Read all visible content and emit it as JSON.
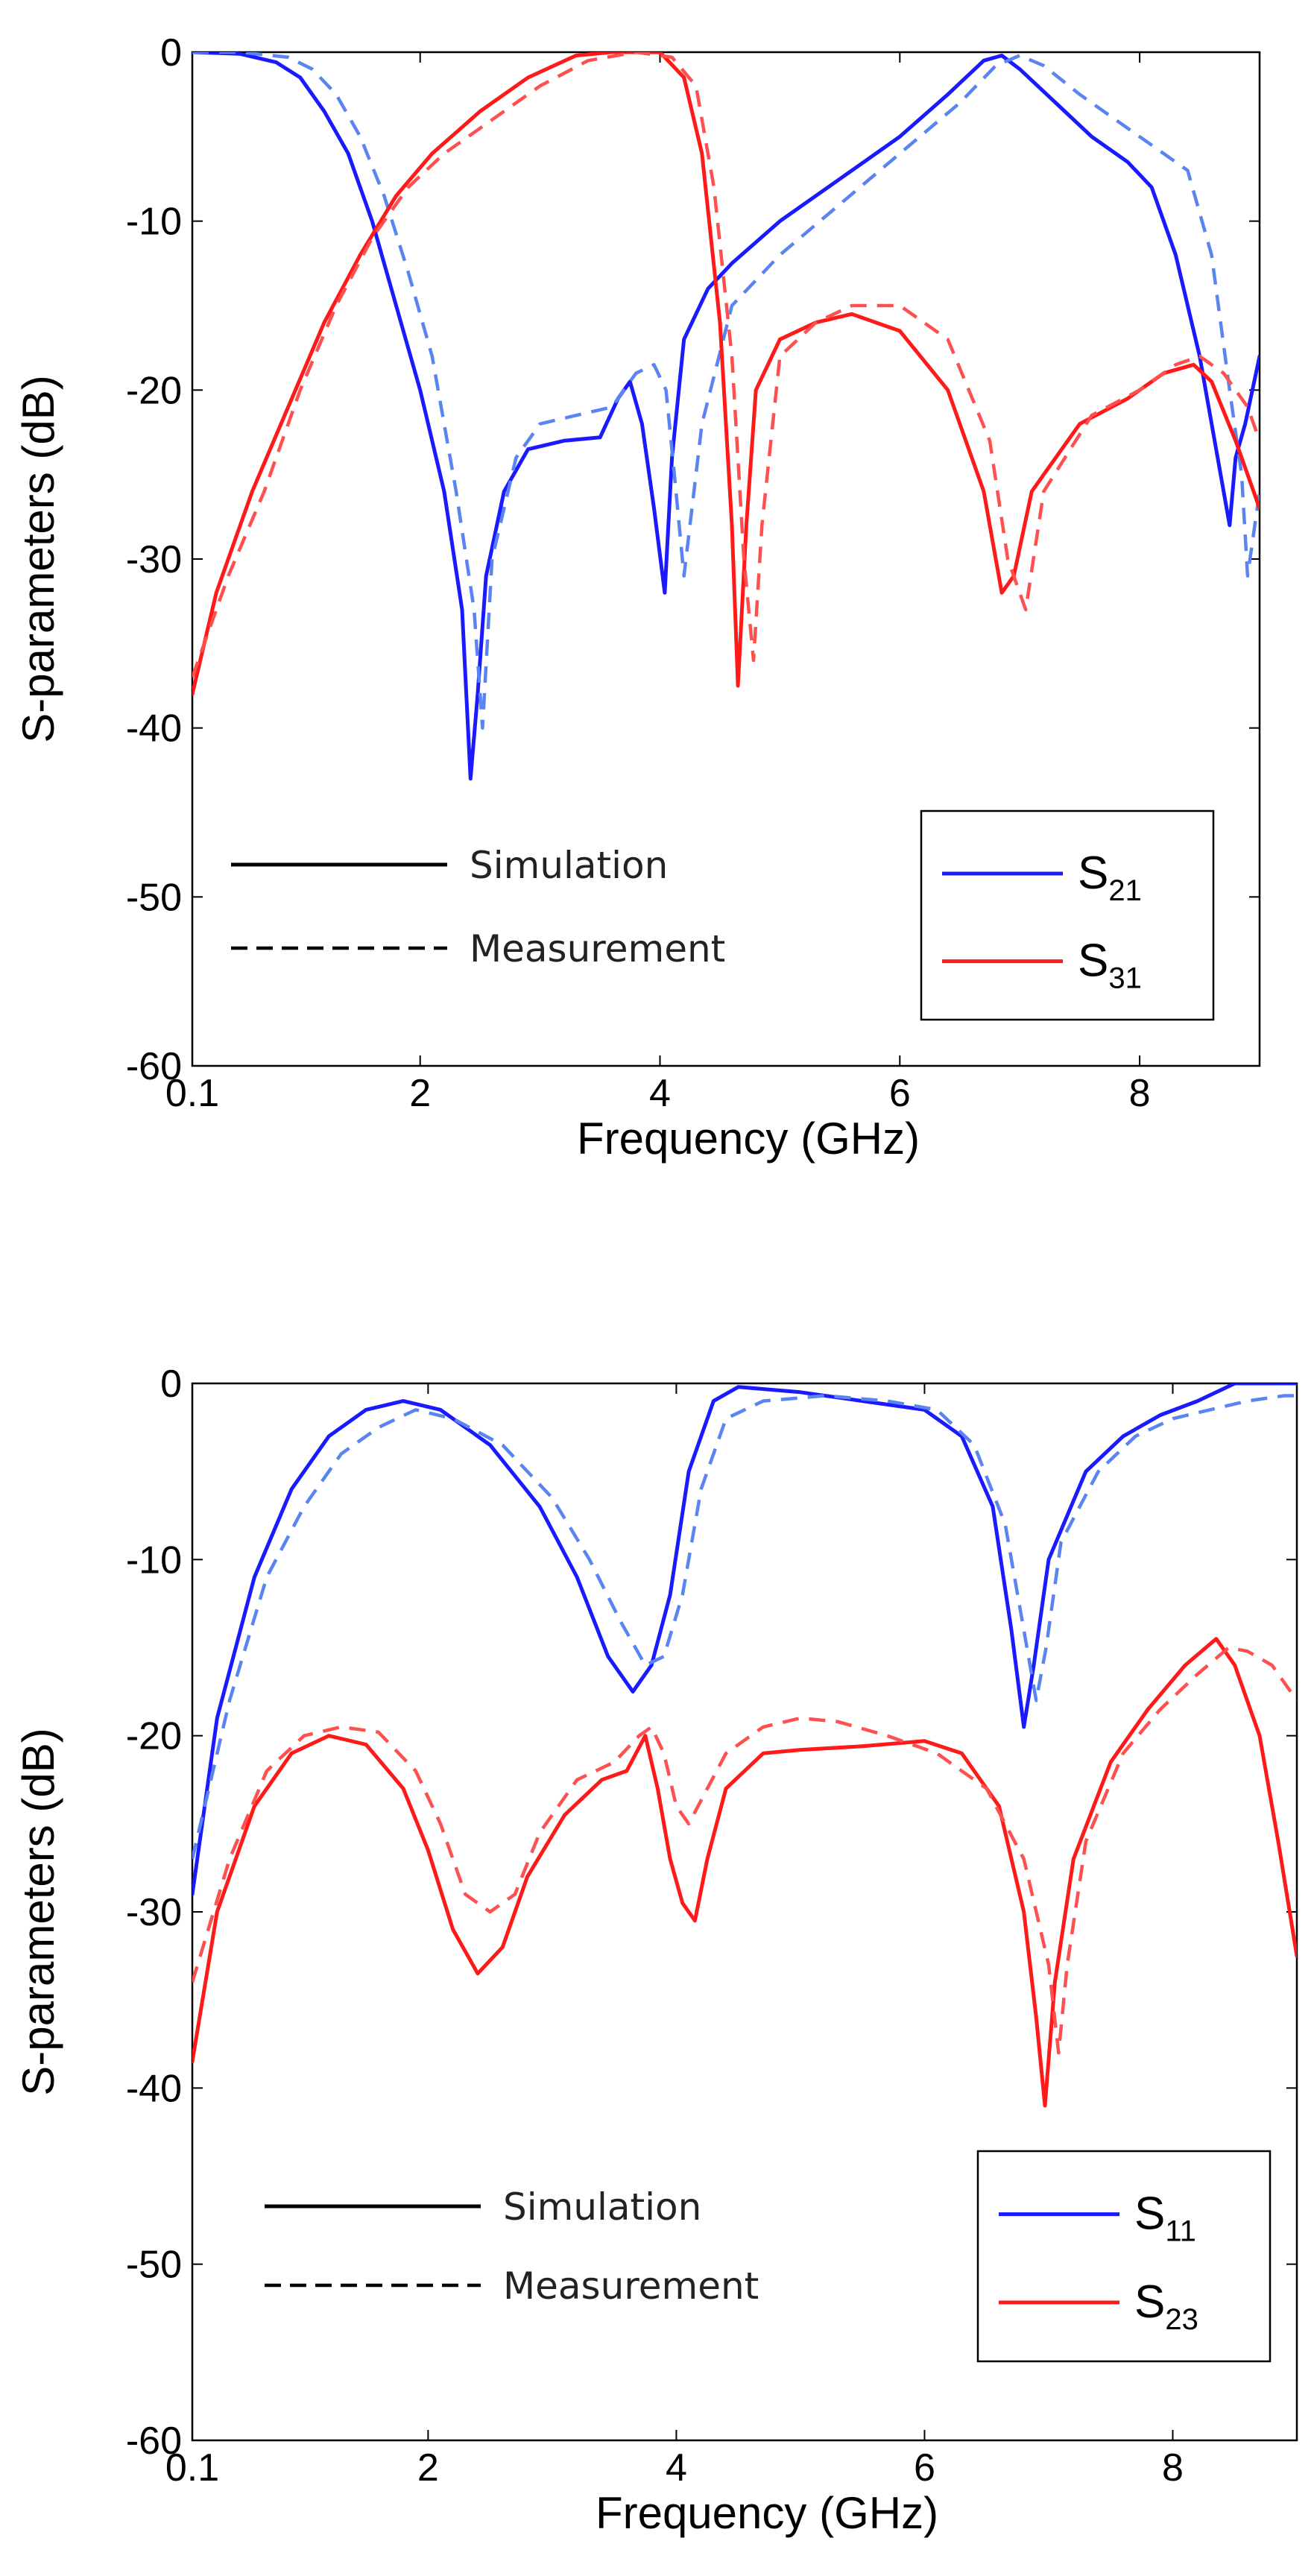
{
  "chart_data": [
    {
      "type": "line",
      "xlabel": "Frequency (GHz)",
      "ylabel": "S-parameters (dB)",
      "xlim": [
        0.1,
        9
      ],
      "ylim": [
        -60,
        0
      ],
      "xticks": [
        0.1,
        2,
        4,
        6,
        8
      ],
      "xtick_labels": [
        "0.1",
        "2",
        "4",
        "6",
        "8"
      ],
      "yticks": [
        0,
        -10,
        -20,
        -30,
        -40,
        -50,
        -60
      ],
      "ytick_labels": [
        "0",
        "-10",
        "-20",
        "-30",
        "-40",
        "-50",
        "-60"
      ],
      "style_legend": {
        "solid": "Simulation",
        "dashed": "Measurement",
        "placement": "lower-left"
      },
      "legend": {
        "placement": "lower-right",
        "entries": [
          {
            "base": "S",
            "sub": "21",
            "color": "#1a1aff"
          },
          {
            "base": "S",
            "sub": "31",
            "color": "#ff1a1a"
          }
        ]
      },
      "series": [
        {
          "name": "S21 Simulation",
          "color": "#1a1aff",
          "style": "solid",
          "x": [
            0.1,
            0.5,
            0.8,
            1.0,
            1.2,
            1.4,
            1.6,
            1.8,
            2.0,
            2.2,
            2.35,
            2.42,
            2.48,
            2.55,
            2.7,
            2.9,
            3.2,
            3.5,
            3.65,
            3.75,
            3.85,
            3.95,
            4.04,
            4.1,
            4.2,
            4.4,
            4.6,
            5.0,
            5.5,
            6.0,
            6.4,
            6.7,
            6.85,
            7.0,
            7.3,
            7.6,
            7.9,
            8.1,
            8.3,
            8.5,
            8.65,
            8.75,
            8.8,
            8.88,
            9.0
          ],
          "y": [
            0,
            -0.1,
            -0.6,
            -1.5,
            -3.5,
            -6,
            -10,
            -15,
            -20,
            -26,
            -33,
            -43,
            -38,
            -31,
            -26,
            -23.5,
            -23,
            -22.8,
            -20.5,
            -19.5,
            -22,
            -27,
            -32,
            -24,
            -17,
            -14,
            -12.5,
            -10,
            -7.5,
            -5,
            -2.5,
            -0.5,
            -0.2,
            -1,
            -3,
            -5,
            -6.5,
            -8,
            -12,
            -18,
            -24,
            -28,
            -24,
            -22,
            -18
          ]
        },
        {
          "name": "S21 Measurement",
          "color": "#5a85f0",
          "style": "dashed",
          "x": [
            0.1,
            0.5,
            0.9,
            1.1,
            1.3,
            1.5,
            1.7,
            1.9,
            2.1,
            2.3,
            2.45,
            2.52,
            2.6,
            2.8,
            3.0,
            3.3,
            3.6,
            3.8,
            3.95,
            4.05,
            4.12,
            4.2,
            4.35,
            4.6,
            5.0,
            5.5,
            6.0,
            6.5,
            6.8,
            7.0,
            7.2,
            7.5,
            7.8,
            8.1,
            8.4,
            8.6,
            8.75,
            8.85,
            8.9,
            9.0
          ],
          "y": [
            0,
            0,
            -0.3,
            -1,
            -2.5,
            -5,
            -8.5,
            -13,
            -18,
            -26,
            -33,
            -40,
            -30,
            -24,
            -22,
            -21.5,
            -21,
            -19,
            -18.5,
            -20,
            -25,
            -31,
            -22,
            -15,
            -12,
            -9,
            -6,
            -3,
            -0.8,
            -0.2,
            -0.8,
            -2.5,
            -4,
            -5.5,
            -7,
            -12,
            -20,
            -25,
            -31,
            -26
          ]
        },
        {
          "name": "S31 Simulation",
          "color": "#ff1a1a",
          "style": "solid",
          "x": [
            0.1,
            0.3,
            0.6,
            0.9,
            1.2,
            1.5,
            1.8,
            2.1,
            2.5,
            2.9,
            3.3,
            3.6,
            4.0,
            4.2,
            4.35,
            4.5,
            4.6,
            4.65,
            4.72,
            4.8,
            5.0,
            5.3,
            5.6,
            6.0,
            6.4,
            6.7,
            6.85,
            6.95,
            7.1,
            7.5,
            7.9,
            8.2,
            8.45,
            8.6,
            8.8,
            9.0
          ],
          "y": [
            -38,
            -32,
            -26,
            -21,
            -16,
            -12,
            -8.5,
            -6,
            -3.5,
            -1.5,
            -0.2,
            0,
            0,
            -1.5,
            -6,
            -16,
            -28,
            -37.5,
            -28,
            -20,
            -17,
            -16,
            -15.5,
            -16.5,
            -20,
            -26,
            -32,
            -31,
            -26,
            -22,
            -20.5,
            -19,
            -18.5,
            -19.5,
            -23,
            -27
          ]
        },
        {
          "name": "S31 Measurement",
          "color": "#ff5050",
          "style": "dashed",
          "x": [
            0.1,
            0.4,
            0.7,
            1.0,
            1.3,
            1.6,
            1.9,
            2.2,
            2.6,
            3.0,
            3.4,
            3.8,
            4.1,
            4.3,
            4.45,
            4.6,
            4.7,
            4.78,
            4.85,
            5.0,
            5.3,
            5.6,
            6.0,
            6.4,
            6.75,
            6.9,
            7.05,
            7.2,
            7.6,
            8.0,
            8.3,
            8.5,
            8.7,
            8.9,
            9.0
          ],
          "y": [
            -37,
            -31,
            -26,
            -20,
            -15,
            -11,
            -8,
            -6,
            -4,
            -2,
            -0.5,
            0,
            -0.3,
            -2,
            -8,
            -18,
            -30,
            -36,
            -28,
            -18,
            -16,
            -15,
            -15,
            -17,
            -23,
            -30,
            -33,
            -26,
            -21.5,
            -20,
            -18.5,
            -18,
            -19,
            -21,
            -23
          ]
        }
      ]
    },
    {
      "type": "line",
      "xlabel": "Frequency (GHz)",
      "ylabel": "S-parameters (dB)",
      "xlim": [
        0.1,
        9
      ],
      "ylim": [
        -60,
        0
      ],
      "xticks": [
        0.1,
        2,
        4,
        6,
        8
      ],
      "xtick_labels": [
        "0.1",
        "2",
        "4",
        "6",
        "8"
      ],
      "yticks": [
        0,
        -10,
        -20,
        -30,
        -40,
        -50,
        -60
      ],
      "ytick_labels": [
        "0",
        "-10",
        "-20",
        "-30",
        "-40",
        "-50",
        "-60"
      ],
      "style_legend": {
        "solid": "Simulation",
        "dashed": "Measurement",
        "placement": "lower-left"
      },
      "legend": {
        "placement": "lower-right",
        "entries": [
          {
            "base": "S",
            "sub": "11",
            "color": "#1a1aff"
          },
          {
            "base": "S",
            "sub": "23",
            "color": "#ff1a1a"
          }
        ]
      },
      "series": [
        {
          "name": "S11 Simulation",
          "color": "#1a1aff",
          "style": "solid",
          "x": [
            0.1,
            0.3,
            0.6,
            0.9,
            1.2,
            1.5,
            1.8,
            2.1,
            2.5,
            2.9,
            3.2,
            3.45,
            3.65,
            3.8,
            3.95,
            4.1,
            4.3,
            4.5,
            5.0,
            5.5,
            6.0,
            6.3,
            6.55,
            6.7,
            6.8,
            6.88,
            7.0,
            7.3,
            7.6,
            7.9,
            8.2,
            8.5,
            8.8,
            9.0
          ],
          "y": [
            -29,
            -19,
            -11,
            -6,
            -3,
            -1.5,
            -1,
            -1.5,
            -3.5,
            -7,
            -11,
            -15.5,
            -17.5,
            -16,
            -12,
            -5,
            -1,
            -0.2,
            -0.5,
            -1,
            -1.5,
            -3,
            -7,
            -14,
            -19.5,
            -16,
            -10,
            -5,
            -3,
            -1.8,
            -1,
            0,
            0,
            0
          ]
        },
        {
          "name": "S11 Measurement",
          "color": "#5a85f0",
          "style": "dashed",
          "x": [
            0.1,
            0.4,
            0.7,
            1.0,
            1.3,
            1.6,
            1.9,
            2.2,
            2.6,
            3.0,
            3.3,
            3.55,
            3.75,
            3.9,
            4.05,
            4.2,
            4.4,
            4.7,
            5.2,
            5.7,
            6.1,
            6.4,
            6.65,
            6.8,
            6.9,
            6.98,
            7.1,
            7.4,
            7.7,
            8.0,
            8.3,
            8.6,
            8.9,
            9.0
          ],
          "y": [
            -27,
            -18,
            -11,
            -7,
            -4,
            -2.5,
            -1.5,
            -2,
            -3.5,
            -6.5,
            -10,
            -13.5,
            -16,
            -15.5,
            -12,
            -6,
            -2,
            -1,
            -0.7,
            -1,
            -1.5,
            -3.5,
            -8,
            -14,
            -18,
            -15,
            -9,
            -5,
            -3,
            -2,
            -1.5,
            -1,
            -0.7,
            -0.7
          ]
        },
        {
          "name": "S23 Simulation",
          "color": "#ff1a1a",
          "style": "solid",
          "x": [
            0.1,
            0.3,
            0.6,
            0.9,
            1.2,
            1.5,
            1.8,
            2.0,
            2.2,
            2.4,
            2.6,
            2.8,
            3.1,
            3.4,
            3.6,
            3.75,
            3.85,
            3.95,
            4.05,
            4.15,
            4.25,
            4.4,
            4.7,
            5.0,
            5.5,
            6.0,
            6.3,
            6.6,
            6.8,
            6.9,
            6.97,
            7.05,
            7.2,
            7.5,
            7.8,
            8.1,
            8.35,
            8.5,
            8.7,
            8.85,
            9.0
          ],
          "y": [
            -38.5,
            -30,
            -24,
            -21,
            -20,
            -20.5,
            -23,
            -26.5,
            -31,
            -33.5,
            -32,
            -28,
            -24.5,
            -22.5,
            -22,
            -20,
            -23,
            -27,
            -29.5,
            -30.5,
            -27,
            -23,
            -21,
            -20.8,
            -20.6,
            -20.3,
            -21,
            -24,
            -30,
            -36,
            -41,
            -34,
            -27,
            -21.5,
            -18.5,
            -16,
            -14.5,
            -16,
            -20,
            -26,
            -32.5
          ]
        },
        {
          "name": "S23 Measurement",
          "color": "#ff5050",
          "style": "dashed",
          "x": [
            0.1,
            0.4,
            0.7,
            1.0,
            1.3,
            1.6,
            1.9,
            2.1,
            2.3,
            2.5,
            2.7,
            2.9,
            3.2,
            3.5,
            3.7,
            3.8,
            3.9,
            4.0,
            4.1,
            4.25,
            4.4,
            4.7,
            5.0,
            5.3,
            5.7,
            6.1,
            6.5,
            6.8,
            7.0,
            7.08,
            7.15,
            7.3,
            7.6,
            7.9,
            8.2,
            8.45,
            8.6,
            8.8,
            9.0
          ],
          "y": [
            -34,
            -27,
            -22,
            -20,
            -19.5,
            -19.8,
            -22,
            -25,
            -29,
            -30,
            -29,
            -25.5,
            -22.5,
            -21.5,
            -20,
            -19.5,
            -21,
            -24,
            -25,
            -23,
            -21,
            -19.5,
            -19,
            -19.2,
            -20,
            -21,
            -23,
            -27,
            -33,
            -38,
            -33,
            -26,
            -21,
            -18.5,
            -16.5,
            -15,
            -15.2,
            -16,
            -18
          ]
        }
      ]
    }
  ]
}
